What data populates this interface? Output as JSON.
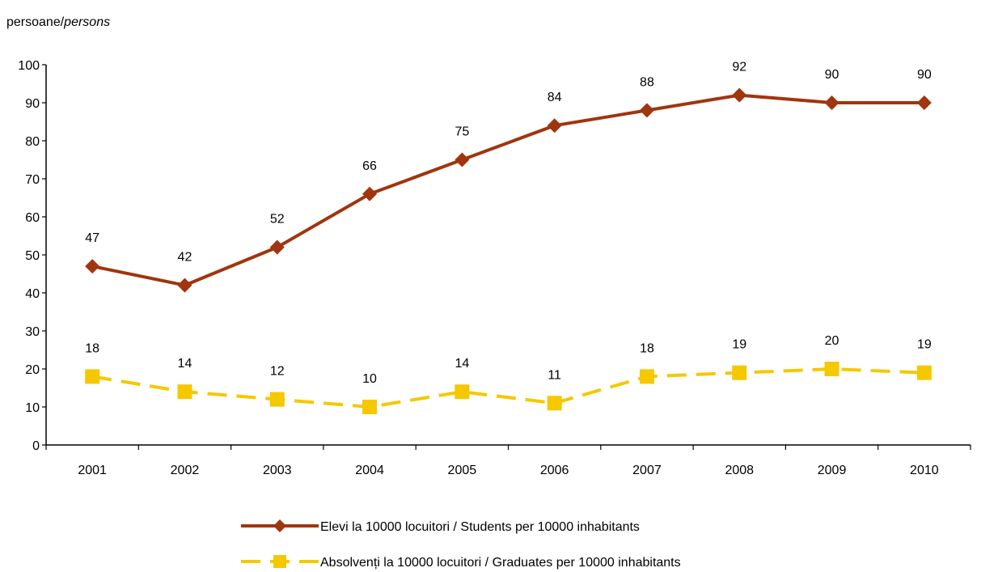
{
  "chart_data": {
    "type": "line",
    "unit_label": {
      "ro": "persoane/",
      "en": "persons"
    },
    "categories": [
      "2001",
      "2002",
      "2003",
      "2004",
      "2005",
      "2006",
      "2007",
      "2008",
      "2009",
      "2010"
    ],
    "ylim": [
      0,
      100
    ],
    "yticks": [
      0,
      10,
      20,
      30,
      40,
      50,
      60,
      70,
      80,
      90,
      100
    ],
    "grid": false,
    "legend_position": "bottom",
    "series": [
      {
        "name": "Elevi la 10000 locuitori / Students per 10000 inhabitants",
        "values": [
          47,
          42,
          52,
          66,
          75,
          84,
          88,
          92,
          90,
          90
        ],
        "color": "#A0350E",
        "marker": "diamond",
        "line_style": "solid"
      },
      {
        "name": "Absolvenți la 10000 locuitori / Graduates per 10000 inhabitants",
        "values": [
          18,
          14,
          12,
          10,
          14,
          11,
          18,
          19,
          20,
          19
        ],
        "color": "#F5C800",
        "marker": "square",
        "line_style": "dashed"
      }
    ]
  }
}
